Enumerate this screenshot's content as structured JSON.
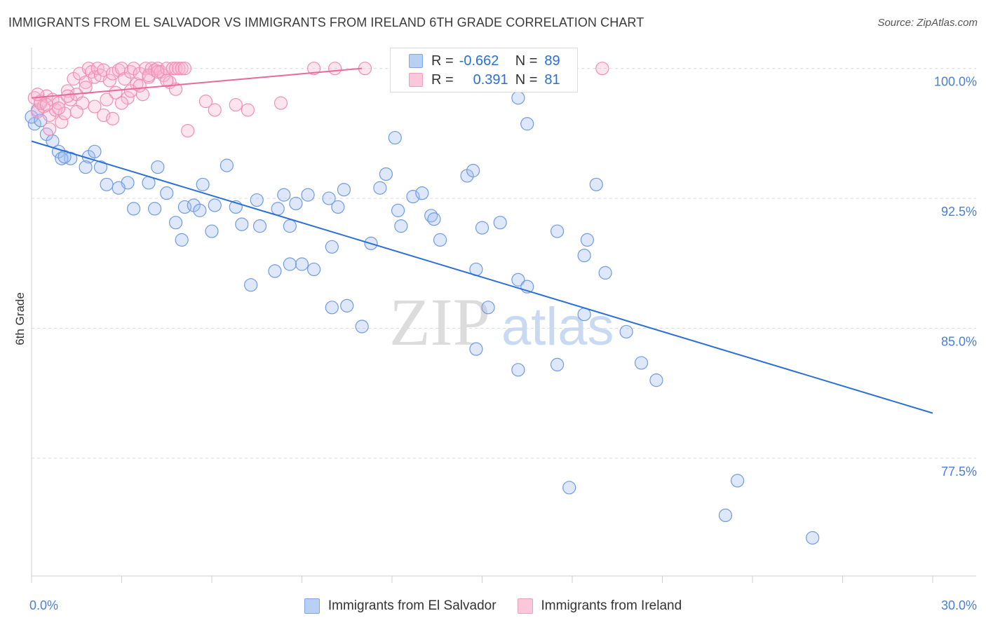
{
  "title": "IMMIGRANTS FROM EL SALVADOR VS IMMIGRANTS FROM IRELAND 6TH GRADE CORRELATION CHART",
  "source": "Source: ZipAtlas.com",
  "watermark": {
    "zip": "ZIP",
    "atlas": "atlas"
  },
  "legend": {
    "r_label": "R =",
    "n_label": "N =",
    "rows": [
      {
        "r": "-0.662",
        "n": "89"
      },
      {
        "r": "0.391",
        "n": "81"
      }
    ]
  },
  "chart_data": {
    "type": "scatter",
    "title": "IMMIGRANTS FROM EL SALVADOR VS IMMIGRANTS FROM IRELAND 6TH GRADE CORRELATION CHART",
    "xlabel": "",
    "ylabel": "6th Grade",
    "xlim": [
      0,
      30
    ],
    "ylim": [
      70.7,
      101.2
    ],
    "x_tick_labels": [
      "0.0%",
      "30.0%"
    ],
    "y_ticks": [
      100.0,
      92.5,
      85.0,
      77.5
    ],
    "y_tick_labels": [
      "100.0%",
      "92.5%",
      "85.0%",
      "77.5%"
    ],
    "grid": true,
    "legend_position": "top-center",
    "colors": {
      "el_salvador": "#5b8fe0",
      "ireland": "#f082a8",
      "line_blue": "#2a6fd6",
      "line_pink": "#e86a98",
      "tick_text": "#4a7fd1"
    },
    "series": [
      {
        "name": "Immigrants from El Salvador",
        "trend": {
          "x": [
            0,
            30
          ],
          "y": [
            95.8,
            80.1
          ]
        },
        "points": [
          [
            0.1,
            96.8
          ],
          [
            0.2,
            97.6
          ],
          [
            0.5,
            96.2
          ],
          [
            0.7,
            95.8
          ],
          [
            0.9,
            95.2
          ],
          [
            1.3,
            94.8
          ],
          [
            1.9,
            94.9
          ],
          [
            2.1,
            95.2
          ],
          [
            1.0,
            94.8
          ],
          [
            1.8,
            94.3
          ],
          [
            2.3,
            94.3
          ],
          [
            4.2,
            94.3
          ],
          [
            2.5,
            93.3
          ],
          [
            3.2,
            93.4
          ],
          [
            3.9,
            93.4
          ],
          [
            5.7,
            93.3
          ],
          [
            6.5,
            94.4
          ],
          [
            2.9,
            93.1
          ],
          [
            4.5,
            92.8
          ],
          [
            3.4,
            91.9
          ],
          [
            4.1,
            91.9
          ],
          [
            4.8,
            91.1
          ],
          [
            5.1,
            92.0
          ],
          [
            5.4,
            92.1
          ],
          [
            5.6,
            91.8
          ],
          [
            6.1,
            92.1
          ],
          [
            6.8,
            92.0
          ],
          [
            6.0,
            90.6
          ],
          [
            7.0,
            91.0
          ],
          [
            7.5,
            92.4
          ],
          [
            7.6,
            90.9
          ],
          [
            8.2,
            91.9
          ],
          [
            8.6,
            90.9
          ],
          [
            8.4,
            92.7
          ],
          [
            8.8,
            92.2
          ],
          [
            9.2,
            92.7
          ],
          [
            9.9,
            92.5
          ],
          [
            10.2,
            92.0
          ],
          [
            10.4,
            93.0
          ],
          [
            11.3,
            89.9
          ],
          [
            10.0,
            89.7
          ],
          [
            9.0,
            88.7
          ],
          [
            9.4,
            88.4
          ],
          [
            8.6,
            88.7
          ],
          [
            8.1,
            88.3
          ],
          [
            7.3,
            87.5
          ],
          [
            5.0,
            90.1
          ],
          [
            10.0,
            86.2
          ],
          [
            10.5,
            86.3
          ],
          [
            11.0,
            85.1
          ],
          [
            11.6,
            93.1
          ],
          [
            11.8,
            93.9
          ],
          [
            12.1,
            96.0
          ],
          [
            12.2,
            91.8
          ],
          [
            12.7,
            92.6
          ],
          [
            12.3,
            90.9
          ],
          [
            13.3,
            91.5
          ],
          [
            13.4,
            91.3
          ],
          [
            13.0,
            92.8
          ],
          [
            13.6,
            90.1
          ],
          [
            14.5,
            93.8
          ],
          [
            14.7,
            94.1
          ],
          [
            14.8,
            88.4
          ],
          [
            15.0,
            90.8
          ],
          [
            15.6,
            91.1
          ],
          [
            14.8,
            83.8
          ],
          [
            15.2,
            86.2
          ],
          [
            16.2,
            98.3
          ],
          [
            16.5,
            96.8
          ],
          [
            16.2,
            87.8
          ],
          [
            16.5,
            87.4
          ],
          [
            17.5,
            90.6
          ],
          [
            16.2,
            82.6
          ],
          [
            17.5,
            82.9
          ],
          [
            18.5,
            90.1
          ],
          [
            18.4,
            89.2
          ],
          [
            18.8,
            93.3
          ],
          [
            18.4,
            85.8
          ],
          [
            19.1,
            88.2
          ],
          [
            19.8,
            84.8
          ],
          [
            20.3,
            83.0
          ],
          [
            20.8,
            82.0
          ],
          [
            17.9,
            75.8
          ],
          [
            23.5,
            76.2
          ],
          [
            23.1,
            74.2
          ],
          [
            26.0,
            72.9
          ],
          [
            0.0,
            97.2
          ],
          [
            0.3,
            97.0
          ],
          [
            1.1,
            94.9
          ]
        ]
      },
      {
        "name": "Immigrants from Ireland",
        "trend": {
          "x": [
            0,
            11.0
          ],
          "y": [
            98.3,
            100.0
          ]
        },
        "points": [
          [
            0.1,
            98.3
          ],
          [
            0.2,
            97.5
          ],
          [
            0.3,
            98.1
          ],
          [
            0.4,
            97.8
          ],
          [
            0.5,
            98.4
          ],
          [
            0.6,
            97.3
          ],
          [
            0.7,
            98.2
          ],
          [
            0.8,
            97.6
          ],
          [
            0.9,
            98.0
          ],
          [
            1.0,
            96.9
          ],
          [
            1.1,
            97.4
          ],
          [
            1.2,
            98.7
          ],
          [
            1.3,
            98.2
          ],
          [
            1.4,
            99.4
          ],
          [
            1.5,
            98.5
          ],
          [
            1.6,
            99.7
          ],
          [
            1.7,
            98.0
          ],
          [
            1.8,
            99.2
          ],
          [
            1.9,
            100.0
          ],
          [
            2.0,
            99.8
          ],
          [
            2.1,
            99.5
          ],
          [
            2.2,
            100.0
          ],
          [
            2.3,
            99.6
          ],
          [
            2.4,
            99.9
          ],
          [
            2.5,
            98.2
          ],
          [
            2.6,
            99.3
          ],
          [
            2.7,
            99.7
          ],
          [
            2.8,
            98.6
          ],
          [
            2.9,
            99.9
          ],
          [
            3.0,
            100.0
          ],
          [
            3.1,
            99.4
          ],
          [
            3.2,
            98.3
          ],
          [
            3.3,
            99.8
          ],
          [
            3.4,
            100.0
          ],
          [
            3.5,
            99.1
          ],
          [
            3.6,
            99.7
          ],
          [
            3.7,
            98.5
          ],
          [
            3.8,
            100.0
          ],
          [
            3.9,
            99.5
          ],
          [
            4.0,
            100.0
          ],
          [
            4.1,
            99.9
          ],
          [
            4.2,
            100.0
          ],
          [
            4.3,
            99.8
          ],
          [
            4.4,
            99.6
          ],
          [
            4.5,
            100.0
          ],
          [
            4.6,
            99.2
          ],
          [
            4.7,
            100.0
          ],
          [
            4.8,
            100.0
          ],
          [
            4.9,
            100.0
          ],
          [
            5.0,
            100.0
          ],
          [
            0.3,
            98.0
          ],
          [
            0.6,
            96.5
          ],
          [
            0.9,
            97.7
          ],
          [
            1.2,
            98.4
          ],
          [
            1.5,
            97.5
          ],
          [
            1.8,
            98.9
          ],
          [
            2.1,
            97.8
          ],
          [
            2.4,
            97.3
          ],
          [
            2.7,
            97.1
          ],
          [
            3.0,
            98.0
          ],
          [
            3.3,
            98.7
          ],
          [
            3.6,
            99.0
          ],
          [
            3.9,
            99.6
          ],
          [
            4.2,
            99.8
          ],
          [
            4.5,
            99.3
          ],
          [
            4.8,
            98.8
          ],
          [
            5.1,
            100.0
          ],
          [
            5.2,
            96.4
          ],
          [
            5.8,
            98.1
          ],
          [
            6.1,
            97.6
          ],
          [
            6.8,
            97.9
          ],
          [
            7.2,
            97.6
          ],
          [
            8.3,
            98.0
          ],
          [
            9.4,
            100.0
          ],
          [
            10.1,
            100.0
          ],
          [
            11.1,
            100.0
          ],
          [
            15.3,
            100.0
          ],
          [
            16.3,
            99.8
          ],
          [
            19.0,
            100.0
          ],
          [
            0.2,
            98.5
          ],
          [
            0.5,
            97.9
          ]
        ]
      }
    ]
  },
  "bottom_legend": [
    {
      "label": "Immigrants from El Salvador"
    },
    {
      "label": "Immigrants from Ireland"
    }
  ]
}
